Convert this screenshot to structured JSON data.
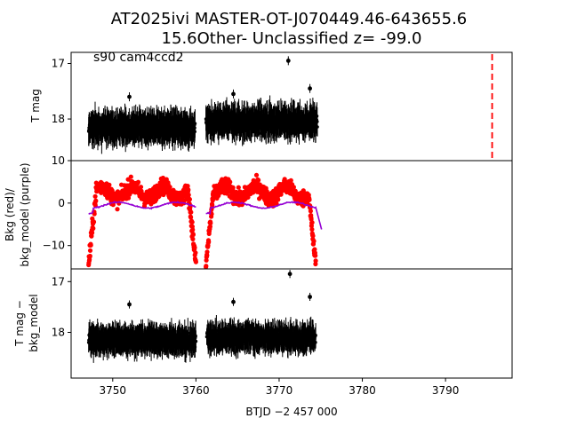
{
  "chart_data": [
    {
      "panel": "top",
      "type": "scatter",
      "title_line1": "AT2025ivi  MASTER-OT-J070449.46-643655.6",
      "title_line2": "15.6Other- Unclassified z= -99.0",
      "annotation": "s90 cam4ccd2",
      "ylabel": "T mag",
      "yticks": [
        "17",
        "18"
      ],
      "ylim_inverted": [
        18.75,
        16.8
      ],
      "x_range": [
        3745,
        3798
      ],
      "segments": [
        {
          "x_start": 3747.1,
          "x_end": 3759.9,
          "y_center": 18.15,
          "y_spread": 0.35
        },
        {
          "x_start": 3761.2,
          "x_end": 3774.6,
          "y_center": 18.05,
          "y_spread": 0.35
        }
      ],
      "outliers": [
        {
          "x": 3771.1,
          "y": 16.95
        },
        {
          "x": 3764.5,
          "y": 17.55
        },
        {
          "x": 3752.0,
          "y": 17.6
        },
        {
          "x": 3773.7,
          "y": 17.45
        }
      ],
      "vline_x": 3795.6,
      "point_color": "#000000",
      "vline_color": "#ff0000"
    },
    {
      "panel": "middle",
      "type": "scatter",
      "ylabel_line1": "Bkg (red)/",
      "ylabel_line2": "bkg_model (purple)",
      "yticks": [
        "10",
        "0",
        "−10"
      ],
      "ylim": [
        -15.5,
        10
      ],
      "segments": [
        {
          "x_start": 3747.1,
          "x_end": 3760.0,
          "level": 2.5
        },
        {
          "x_start": 3761.2,
          "x_end": 3774.4,
          "level": 2.5
        }
      ],
      "bkg_color": "#ff0000",
      "model_color": "#9400d3",
      "model_tail": {
        "x_end": 3775.1,
        "y_end": -6.2
      }
    },
    {
      "panel": "bottom",
      "type": "scatter",
      "ylabel_line1": "T mag −",
      "ylabel_line2": "bkg_model",
      "yticks": [
        "17",
        "18"
      ],
      "ylim_inverted": [
        18.9,
        16.75
      ],
      "xlabel": "BTJD −2 457 000",
      "xticks": [
        "3750",
        "3760",
        "3770",
        "3780",
        "3790"
      ],
      "xtick_values": [
        3750,
        3760,
        3770,
        3780,
        3790
      ],
      "segments": [
        {
          "x_start": 3747.1,
          "x_end": 3760.0,
          "y_center": 18.15,
          "y_spread": 0.3
        },
        {
          "x_start": 3761.3,
          "x_end": 3774.4,
          "y_center": 18.1,
          "y_spread": 0.3
        }
      ],
      "outliers": [
        {
          "x": 3771.3,
          "y": 16.85
        },
        {
          "x": 3764.5,
          "y": 17.4
        },
        {
          "x": 3752.0,
          "y": 17.45
        },
        {
          "x": 3773.7,
          "y": 17.3
        }
      ],
      "point_color": "#000000"
    }
  ]
}
